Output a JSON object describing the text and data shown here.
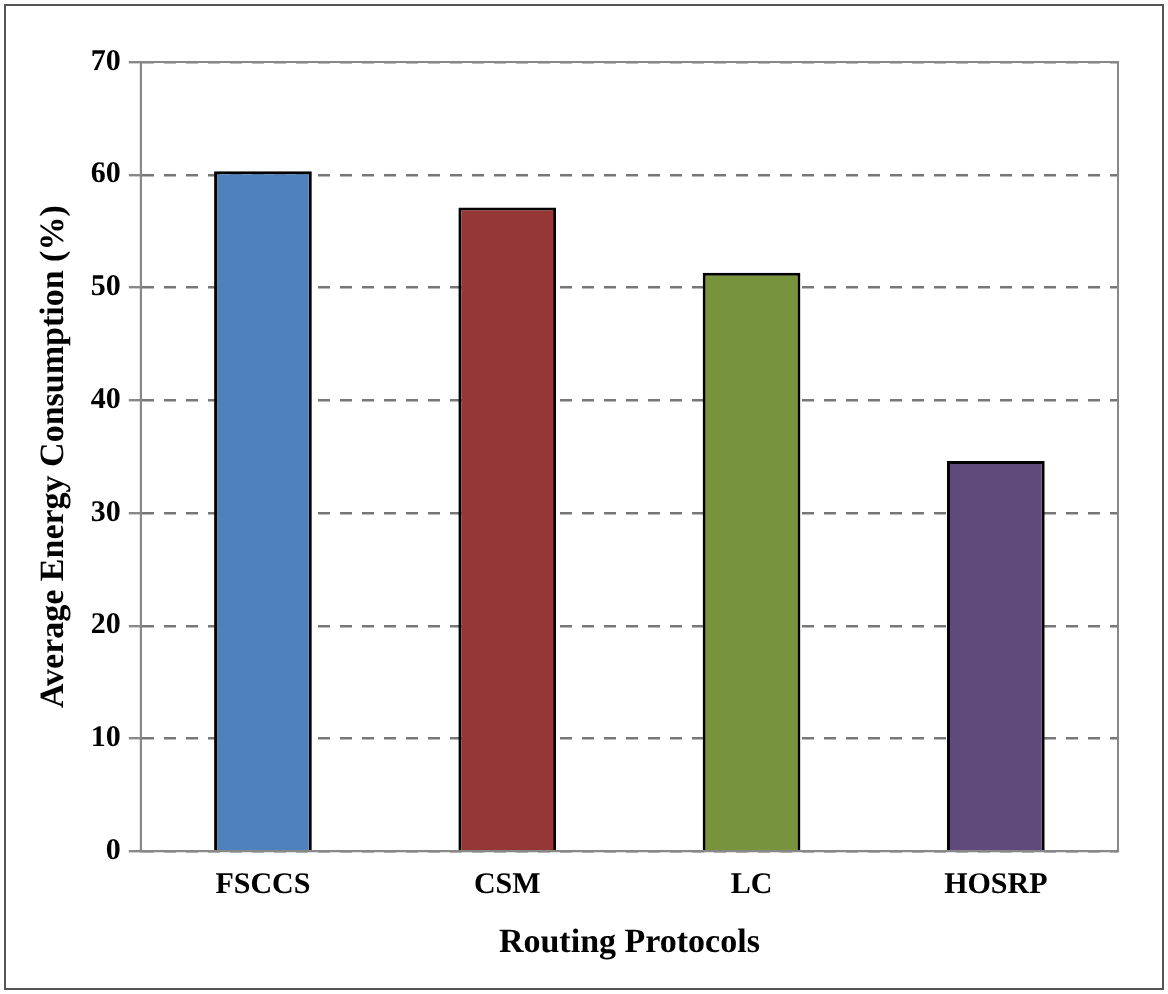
{
  "chart_data": {
    "type": "bar",
    "xlabel": "Routing Protocols",
    "ylabel": "Average Energy Consumption (%)",
    "categories": [
      "FSCCS",
      "CSM",
      "LC",
      "HOSRP"
    ],
    "values": [
      60.3,
      57.1,
      51.3,
      34.6
    ],
    "colors": [
      "#4f81bd",
      "#953735",
      "#77933c",
      "#604a7b"
    ],
    "ylim": [
      0,
      70
    ],
    "yticks": [
      0,
      10,
      20,
      30,
      40,
      50,
      60,
      70
    ],
    "grid": "y"
  }
}
